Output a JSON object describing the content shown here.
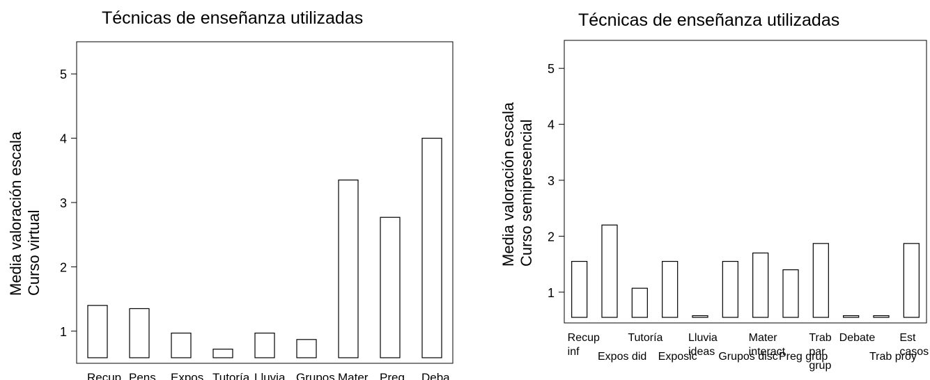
{
  "chart_data": [
    {
      "type": "bar",
      "title": "Técnicas de enseñanza utilizadas",
      "ylabel_lines": [
        "Media valoración escala",
        "Curso virtual"
      ],
      "xlabel": "",
      "ylim": [
        0.5,
        5.5
      ],
      "yticks": [
        1,
        2,
        3,
        4,
        5
      ],
      "grid": false,
      "categories": [
        "Recup\ninf",
        "Pens\ncrit",
        "Expos\ndid",
        "Tutoría",
        "Lluvia\nideas",
        "Grupos\ndisc",
        "Mater\ninteract",
        "Preg\ngrupo",
        "Deba"
      ],
      "values": [
        1.4,
        1.35,
        0.97,
        0.72,
        0.97,
        0.87,
        3.35,
        2.77,
        4.0
      ]
    },
    {
      "type": "bar",
      "title": "Técnicas de enseñanza utilizadas",
      "ylabel_lines": [
        "Media valoración escala",
        "Curso semipresencial"
      ],
      "xlabel": "",
      "ylim": [
        0.45,
        5.5
      ],
      "yticks": [
        1,
        2,
        3,
        4,
        5
      ],
      "grid": false,
      "categories": [
        "Recup\ninf",
        "Expos did",
        "Tutoría",
        "Exposic",
        "Lluvia\nideas",
        "Grupos disc",
        "Mater\ninteract",
        "Preg grup",
        "Trab\npar\ngrup",
        "Debate",
        "Trab proy",
        "Est\ncasos"
      ],
      "values": [
        1.55,
        2.2,
        1.07,
        1.55,
        0.58,
        1.55,
        1.7,
        1.4,
        1.87,
        0.58,
        0.58,
        1.87
      ]
    }
  ]
}
